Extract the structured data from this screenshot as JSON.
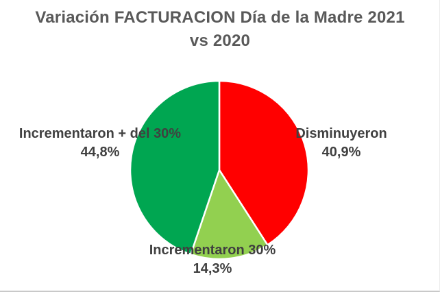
{
  "chart_data": {
    "type": "pie",
    "title": "Variación FACTURACION Día de la Madre 2021 vs 2020",
    "title_lines": [
      "Variación FACTURACION Día de la Madre 2021",
      "vs 2020"
    ],
    "title_color": "#595959",
    "label_color": "#404040",
    "separator_color": "#ffffff",
    "background_color": "#ffffff",
    "start_angle_deg": 0,
    "direction": "clockwise",
    "legend": "none",
    "units": "%",
    "slices": [
      {
        "label": "Disminuyeron",
        "value": 40.9,
        "pct_label": "40,9%",
        "color": "#ff0000"
      },
      {
        "label": "Incrementaron 30%",
        "value": 14.3,
        "pct_label": "14,3%",
        "color": "#92d050"
      },
      {
        "label": "Incrementaron + del 30%",
        "value": 44.8,
        "pct_label": "44,8%",
        "color": "#00a651"
      }
    ]
  }
}
